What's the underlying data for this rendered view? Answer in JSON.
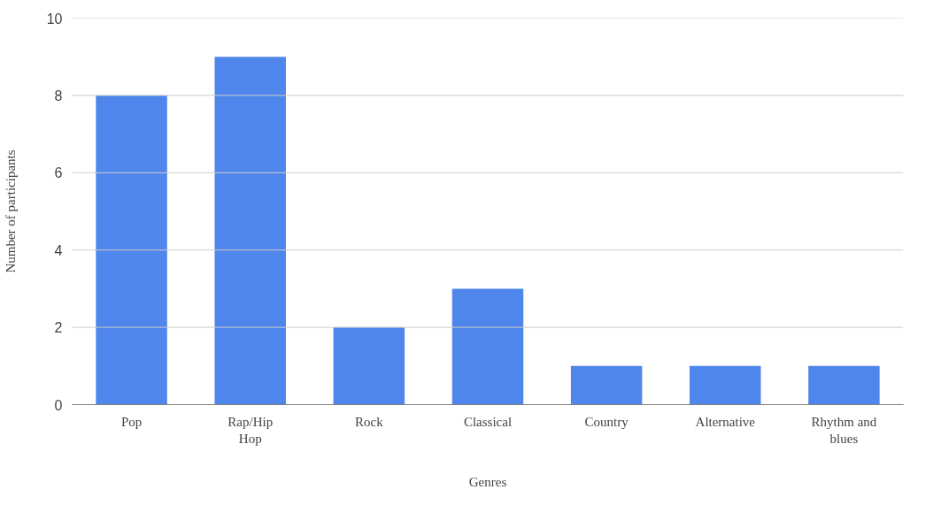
{
  "chart_data": {
    "type": "bar",
    "xlabel": "Genres",
    "ylabel": "Number of participants",
    "categories": [
      "Pop",
      "Rap/Hip Hop",
      "Rock",
      "Classical",
      "Country",
      "Alternative",
      "Rhythm and blues"
    ],
    "values": [
      8,
      9,
      2,
      3,
      1,
      1,
      1
    ],
    "color": "#4f86ec",
    "ylim": [
      0,
      10
    ],
    "yticks": [
      0,
      2,
      4,
      6,
      8,
      10
    ],
    "grid": "y"
  }
}
